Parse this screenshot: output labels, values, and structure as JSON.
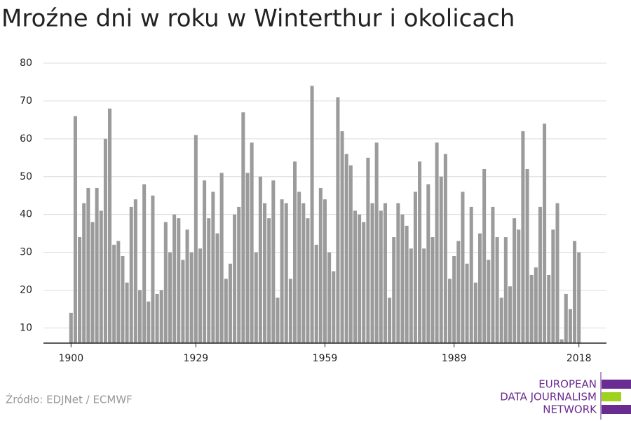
{
  "chart_data": {
    "type": "bar",
    "title": "Mroźne dni w roku w Winterthur i okolicach",
    "source": "Źródło: EDJNet / ECMWF",
    "logo": [
      "EUROPEAN",
      "DATA JOURNALISM",
      "NETWORK"
    ],
    "x": [
      1900,
      1901,
      1902,
      1903,
      1904,
      1905,
      1906,
      1907,
      1908,
      1909,
      1910,
      1911,
      1912,
      1913,
      1914,
      1915,
      1916,
      1917,
      1918,
      1919,
      1920,
      1921,
      1922,
      1923,
      1924,
      1925,
      1926,
      1927,
      1928,
      1929,
      1930,
      1931,
      1932,
      1933,
      1934,
      1935,
      1936,
      1937,
      1938,
      1939,
      1940,
      1941,
      1942,
      1943,
      1944,
      1945,
      1946,
      1947,
      1948,
      1949,
      1950,
      1951,
      1952,
      1953,
      1954,
      1955,
      1956,
      1957,
      1958,
      1959,
      1960,
      1961,
      1962,
      1963,
      1964,
      1965,
      1966,
      1967,
      1968,
      1969,
      1970,
      1971,
      1972,
      1973,
      1974,
      1975,
      1976,
      1977,
      1978,
      1979,
      1980,
      1981,
      1982,
      1983,
      1984,
      1985,
      1986,
      1987,
      1988,
      1989,
      1990,
      1991,
      1992,
      1993,
      1994,
      1995,
      1996,
      1997,
      1998,
      1999,
      2000,
      2001,
      2002,
      2003,
      2004,
      2005,
      2006,
      2007,
      2008,
      2009,
      2010,
      2011,
      2012,
      2013,
      2014,
      2015,
      2016,
      2017,
      2018
    ],
    "values": [
      14,
      66,
      34,
      43,
      47,
      38,
      47,
      41,
      60,
      68,
      32,
      33,
      29,
      22,
      42,
      44,
      20,
      48,
      17,
      45,
      19,
      20,
      38,
      30,
      40,
      39,
      28,
      36,
      30,
      61,
      31,
      49,
      39,
      46,
      35,
      51,
      23,
      27,
      40,
      42,
      67,
      51,
      59,
      30,
      50,
      43,
      39,
      49,
      18,
      44,
      43,
      23,
      54,
      46,
      43,
      39,
      74,
      32,
      47,
      44,
      30,
      25,
      71,
      62,
      56,
      53,
      41,
      40,
      38,
      55,
      43,
      59,
      41,
      43,
      18,
      34,
      43,
      40,
      37,
      31,
      46,
      54,
      31,
      48,
      34,
      59,
      50,
      56,
      23,
      29,
      33,
      46,
      27,
      42,
      22,
      35,
      52,
      28,
      42,
      34,
      18,
      34,
      21,
      39,
      36,
      62,
      52,
      24,
      26,
      42,
      64,
      24,
      36,
      43,
      7,
      19,
      15,
      33,
      30
    ],
    "color": "#9b9b9b",
    "xlim": [
      1893.6,
      2024.4
    ],
    "xticks": [
      1900,
      1929,
      1959,
      1989,
      2018
    ],
    "ylim": [
      6,
      80
    ],
    "yticks": [
      10,
      20,
      30,
      40,
      50,
      60,
      70,
      80
    ],
    "grid": true
  }
}
